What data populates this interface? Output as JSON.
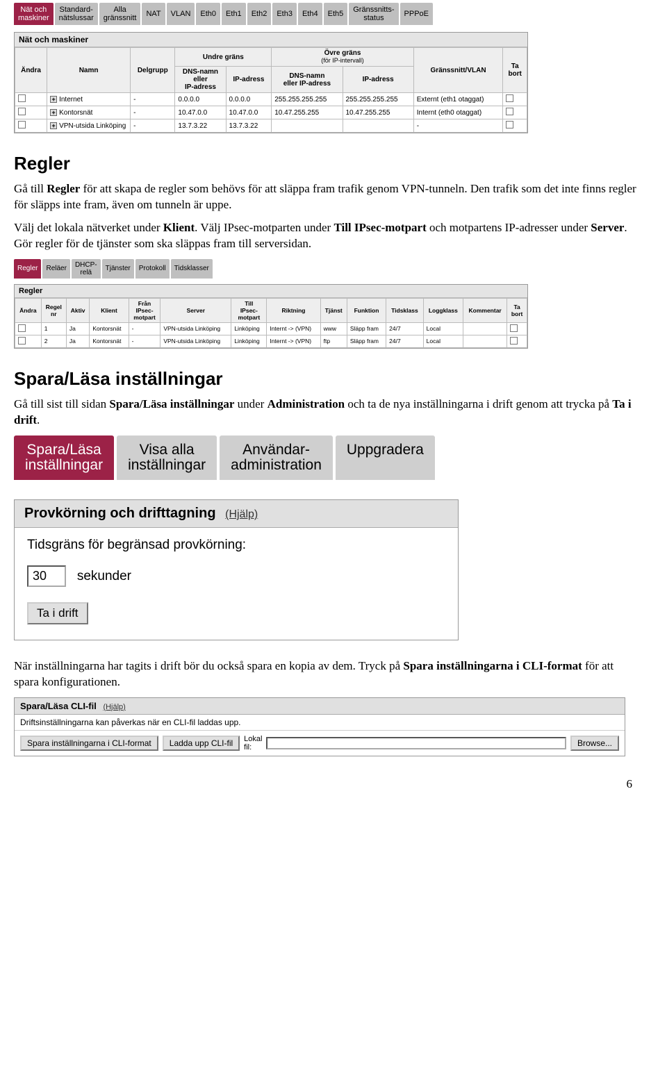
{
  "colors": {
    "tab_active_bg": "#9c2247",
    "tab_bg": "#bfbfbf",
    "panel_head_bg": "#e4e4e4",
    "border": "#999999"
  },
  "screenshot1": {
    "tabs": [
      "Nät och\nmaskiner",
      "Standard-\nnätslussar",
      "Alla\ngränssnitt",
      "NAT",
      "VLAN",
      "Eth0",
      "Eth1",
      "Eth2",
      "Eth3",
      "Eth4",
      "Eth5",
      "Gränssnitts-\nstatus",
      "PPPoE"
    ],
    "panel_title": "Nät och maskiner",
    "header": {
      "andra": "Ändra",
      "namn": "Namn",
      "delgrupp": "Delgrupp",
      "undre": "Undre gräns",
      "ovre_top": "Övre gräns",
      "ovre_sub": "(för IP-intervall)",
      "dns": "DNS-namn\neller\nIP-adress",
      "ip": "IP-adress",
      "dns2": "DNS-namn\neller IP-adress",
      "ip2": "IP-adress",
      "grans": "Gränssnitt/VLAN",
      "tabort": "Ta\nbort"
    },
    "rows": [
      {
        "name": "Internet",
        "dg": "-",
        "dns": "0.0.0.0",
        "ip": "0.0.0.0",
        "dns2": "255.255.255.255",
        "ip2": "255.255.255.255",
        "gr": "Externt (eth1 otaggat)"
      },
      {
        "name": "Kontorsnät",
        "dg": "-",
        "dns": "10.47.0.0",
        "ip": "10.47.0.0",
        "dns2": "10.47.255.255",
        "ip2": "10.47.255.255",
        "gr": "Internt (eth0 otaggat)"
      },
      {
        "name": "VPN-utsida Linköping",
        "dg": "-",
        "dns": "13.7.3.22",
        "ip": "13.7.3.22",
        "dns2": "",
        "ip2": "",
        "gr": "-"
      }
    ]
  },
  "section_regler": {
    "title": "Regler",
    "para1_a": "Gå till ",
    "para1_b": "Regler",
    "para1_c": " för att skapa de regler som behövs för att släppa fram trafik genom VPN-tunneln. Den trafik som det inte finns regler för släpps inte fram, även om tunneln är uppe.",
    "para2_a": "Välj det lokala nätverket under ",
    "para2_b": "Klient",
    "para2_c": ". Välj IPsec-motparten under ",
    "para2_d": "Till IPsec-motpart",
    "para2_e": " och motpartens IP-adresser under ",
    "para2_f": "Server",
    "para2_g": ". Gör regler för de tjänster som ska släppas fram till serversidan."
  },
  "screenshot2": {
    "tabs": [
      "Regler",
      "Reläer",
      "DHCP-\nrelä",
      "Tjänster",
      "Protokoll",
      "Tidsklasser"
    ],
    "panel_title": "Regler",
    "cols": [
      "Ändra",
      "Regel\nnr",
      "Aktiv",
      "Klient",
      "Från\nIPsec-\nmotpart",
      "Server",
      "Till\nIPsec-\nmotpart",
      "Riktning",
      "Tjänst",
      "Funktion",
      "Tidsklass",
      "Loggklass",
      "Kommentar",
      "Ta\nbort"
    ],
    "rows": [
      {
        "nr": "1",
        "aktiv": "Ja",
        "klient": "Kontorsnät",
        "fran": "-",
        "server": "VPN-utsida Linköping",
        "till": "Linköping",
        "riktning": "Internt -> (VPN)",
        "tjanst": "www",
        "funktion": "Släpp fram",
        "tids": "24/7",
        "logg": "Local",
        "komm": ""
      },
      {
        "nr": "2",
        "aktiv": "Ja",
        "klient": "Kontorsnät",
        "fran": "-",
        "server": "VPN-utsida Linköping",
        "till": "Linköping",
        "riktning": "Internt -> (VPN)",
        "tjanst": "ftp",
        "funktion": "Släpp fram",
        "tids": "24/7",
        "logg": "Local",
        "komm": ""
      }
    ]
  },
  "section_spara": {
    "title": "Spara/Läsa inställningar",
    "para_a": "Gå till sist till sidan ",
    "para_b": "Spara/Läsa inställningar",
    "para_c": " under ",
    "para_d": "Administration",
    "para_e": " och ta de nya inställningarna i drift genom att trycka på ",
    "para_f": "Ta i drift",
    "para_g": "."
  },
  "screenshot3": {
    "tabs": [
      "Spara/Läsa\ninställningar",
      "Visa alla\ninställningar",
      "Användar-\nadministration",
      "Uppgradera"
    ],
    "prov_title": "Provkörning och drifttagning",
    "help": "(Hjälp)",
    "limit_label": "Tidsgräns för begränsad provkörning:",
    "limit_value": "30",
    "limit_unit": "sekunder",
    "btn": "Ta i drift"
  },
  "para_after": {
    "a": "När inställningarna har tagits i drift bör du också spara en kopia av dem. Tryck på ",
    "b": "Spara inställningarna i CLI-format",
    "c": " för att spara konfigurationen."
  },
  "screenshot4": {
    "title": "Spara/Läsa CLI-fil",
    "help": "(Hjälp)",
    "note": "Driftsinställningarna kan påverkas när en CLI-fil laddas upp.",
    "btn_save": "Spara inställningarna i CLI-format",
    "btn_load": "Ladda upp CLI-fil",
    "label_local": "Lokal\nfil:",
    "btn_browse": "Browse..."
  },
  "page_number": "6"
}
